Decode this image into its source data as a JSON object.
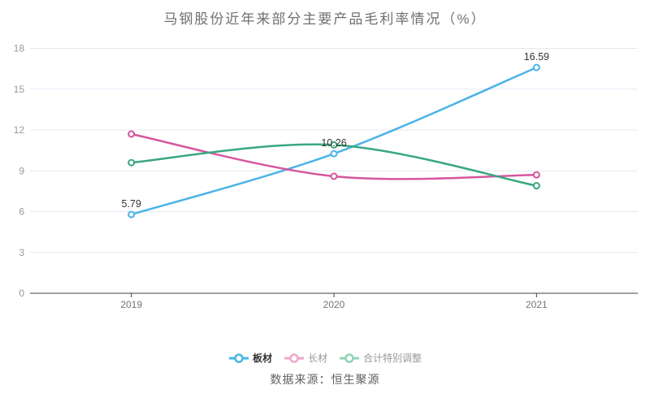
{
  "chart_data": {
    "type": "line",
    "title": "马钢股份近年来部分主要产品毛利率情况（%）",
    "categories": [
      "2019",
      "2020",
      "2021"
    ],
    "series": [
      {
        "name": "板材",
        "color": "#4bb3e8",
        "values": [
          5.79,
          10.26,
          16.59
        ],
        "labels": [
          "5.79",
          "10.26",
          "16.59"
        ],
        "show_labels": true
      },
      {
        "name": "长材",
        "color": "#d6569e",
        "values": [
          11.7,
          8.6,
          8.7
        ],
        "labels": [],
        "show_labels": false
      },
      {
        "name": "合计特别调整",
        "color": "#39a77f",
        "values": [
          9.6,
          10.9,
          7.9
        ],
        "labels": [],
        "show_labels": false
      }
    ],
    "ylim": [
      0,
      18
    ],
    "yticks": [
      0,
      3,
      6,
      9,
      12,
      15,
      18
    ],
    "grid": true,
    "smooth": true,
    "legend_position": "bottom",
    "xlabel": "",
    "ylabel": ""
  },
  "legend": {
    "items": [
      {
        "label": "板材",
        "marker_color": "#4bb3e8",
        "text_color": "#333333",
        "bold": true
      },
      {
        "label": "长材",
        "marker_color": "#efa6cb",
        "text_color": "#999999",
        "bold": false
      },
      {
        "label": "合计特别调整",
        "marker_color": "#8fd4b6",
        "text_color": "#999999",
        "bold": false
      }
    ]
  },
  "footer": {
    "source": "数据来源：恒生聚源"
  },
  "colors": {
    "axis_line": "#404040",
    "grid_line": "#e2e9f3",
    "y_tick_label": "#999999",
    "x_tick_label": "#757575",
    "data_label": "#333333",
    "title": "#707070",
    "marker_fill": "#ffffff"
  }
}
